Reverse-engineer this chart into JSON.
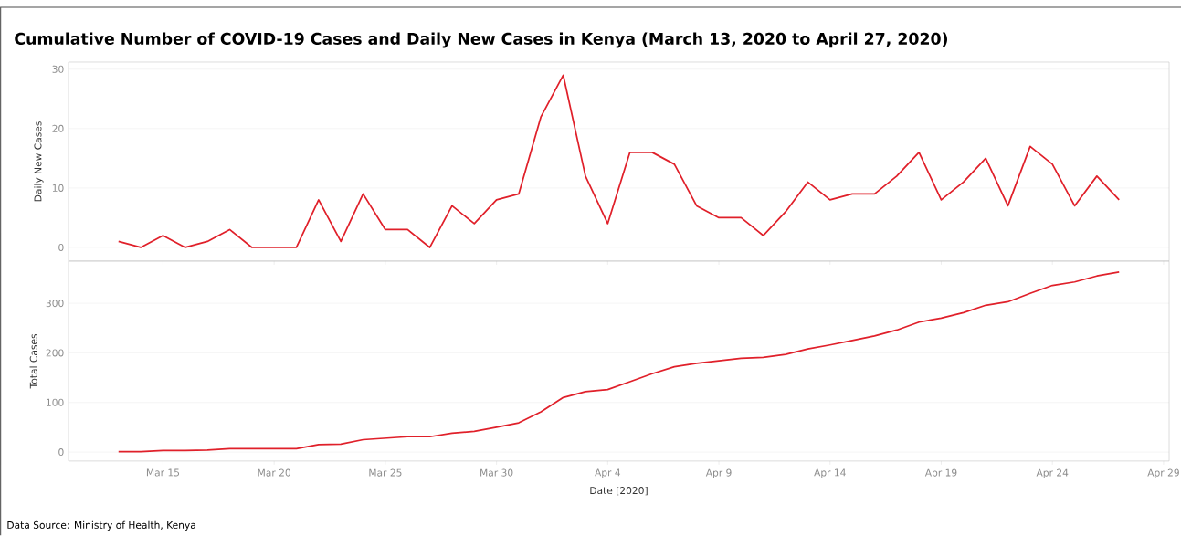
{
  "chart_data": [
    {
      "type": "line",
      "title": "Cumulative Number of COVID-19 Cases and Daily New Cases in Kenya (March 13, 2020 to April 27, 2020)",
      "ylabel": "Daily New Cases",
      "x": [
        "2020-03-13",
        "2020-03-14",
        "2020-03-15",
        "2020-03-16",
        "2020-03-17",
        "2020-03-18",
        "2020-03-19",
        "2020-03-20",
        "2020-03-21",
        "2020-03-22",
        "2020-03-23",
        "2020-03-24",
        "2020-03-25",
        "2020-03-26",
        "2020-03-27",
        "2020-03-28",
        "2020-03-29",
        "2020-03-30",
        "2020-03-31",
        "2020-04-01",
        "2020-04-02",
        "2020-04-03",
        "2020-04-04",
        "2020-04-05",
        "2020-04-06",
        "2020-04-07",
        "2020-04-08",
        "2020-04-09",
        "2020-04-10",
        "2020-04-11",
        "2020-04-12",
        "2020-04-13",
        "2020-04-14",
        "2020-04-15",
        "2020-04-16",
        "2020-04-17",
        "2020-04-18",
        "2020-04-19",
        "2020-04-20",
        "2020-04-21",
        "2020-04-22",
        "2020-04-23",
        "2020-04-24",
        "2020-04-25",
        "2020-04-26",
        "2020-04-27"
      ],
      "series": [
        {
          "color": "#e0202a",
          "values": [
            1,
            0,
            2,
            0,
            1,
            3,
            0,
            0,
            0,
            8,
            1,
            9,
            3,
            3,
            0,
            7,
            4,
            8,
            9,
            22,
            29,
            12,
            4,
            16,
            16,
            14,
            7,
            5,
            5,
            2,
            6,
            11,
            8,
            9,
            9,
            12,
            16,
            8,
            11,
            15,
            7,
            17,
            14,
            7,
            12,
            8
          ]
        }
      ],
      "xlim": [
        "2020-03-10T18:00",
        "2020-04-29T06:00"
      ],
      "xticks": [
        "2020-03-15",
        "2020-03-20",
        "2020-03-25",
        "2020-03-30",
        "2020-04-04",
        "2020-04-09",
        "2020-04-14",
        "2020-04-19",
        "2020-04-24",
        "2020-04-29"
      ],
      "ylim": [
        -2.3,
        31.2
      ],
      "yticks": [
        0,
        10,
        20,
        30
      ],
      "grid": "y",
      "tick_labels": "y"
    },
    {
      "type": "line",
      "ylabel": "Total Cases",
      "xlabel": "Date [2020]",
      "annotations": [
        "Data Source: Ministry of Health, Kenya"
      ],
      "x": [
        "2020-03-13",
        "2020-03-14",
        "2020-03-15",
        "2020-03-16",
        "2020-03-17",
        "2020-03-18",
        "2020-03-19",
        "2020-03-20",
        "2020-03-21",
        "2020-03-22",
        "2020-03-23",
        "2020-03-24",
        "2020-03-25",
        "2020-03-26",
        "2020-03-27",
        "2020-03-28",
        "2020-03-29",
        "2020-03-30",
        "2020-03-31",
        "2020-04-01",
        "2020-04-02",
        "2020-04-03",
        "2020-04-04",
        "2020-04-05",
        "2020-04-06",
        "2020-04-07",
        "2020-04-08",
        "2020-04-09",
        "2020-04-10",
        "2020-04-11",
        "2020-04-12",
        "2020-04-13",
        "2020-04-14",
        "2020-04-15",
        "2020-04-16",
        "2020-04-17",
        "2020-04-18",
        "2020-04-19",
        "2020-04-20",
        "2020-04-21",
        "2020-04-22",
        "2020-04-23",
        "2020-04-24",
        "2020-04-25",
        "2020-04-26",
        "2020-04-27"
      ],
      "series": [
        {
          "color": "#e0202a",
          "values": [
            1,
            1,
            3,
            3,
            4,
            7,
            7,
            7,
            7,
            15,
            16,
            25,
            28,
            31,
            31,
            38,
            42,
            50,
            59,
            81,
            110,
            122,
            126,
            142,
            158,
            172,
            179,
            184,
            189,
            191,
            197,
            208,
            216,
            225,
            234,
            246,
            262,
            270,
            281,
            296,
            303,
            320,
            336,
            343,
            355,
            363
          ]
        }
      ],
      "xlim": [
        "2020-03-10T18:00",
        "2020-04-29T06:00"
      ],
      "xticks": [
        {
          "value": "2020-03-15",
          "label": "Mar 15"
        },
        {
          "value": "2020-03-20",
          "label": "Mar 20"
        },
        {
          "value": "2020-03-25",
          "label": "Mar 25"
        },
        {
          "value": "2020-03-30",
          "label": "Mar 30"
        },
        {
          "value": "2020-04-04",
          "label": "Apr 4"
        },
        {
          "value": "2020-04-09",
          "label": "Apr 9"
        },
        {
          "value": "2020-04-14",
          "label": "Apr 14"
        },
        {
          "value": "2020-04-19",
          "label": "Apr 19"
        },
        {
          "value": "2020-04-24",
          "label": "Apr 24"
        },
        {
          "value": "2020-04-29",
          "label": "Apr 29"
        }
      ],
      "ylim": [
        -18,
        385
      ],
      "yticks": [
        0,
        100,
        200,
        300
      ],
      "grid": "y"
    }
  ]
}
